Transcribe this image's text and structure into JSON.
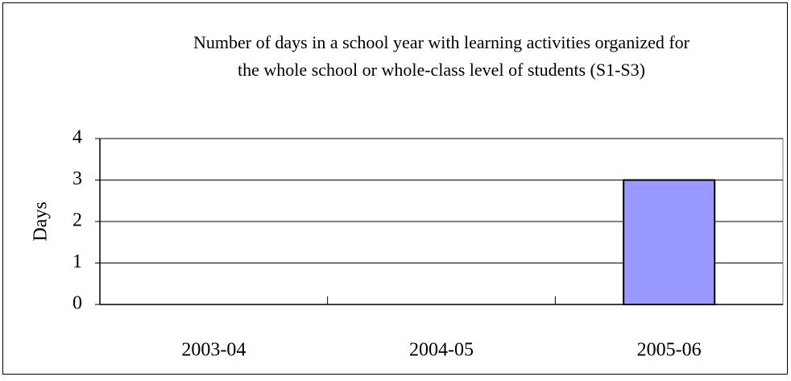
{
  "chart_data": {
    "type": "bar",
    "title": [
      "Number of days in a school year with learning activities organized for",
      "the whole school or whole-class level of students (S1-S3)"
    ],
    "y_label": "Days",
    "categories": [
      "2003-04",
      "2004-05",
      "2005-06"
    ],
    "values": [
      0,
      0,
      3
    ],
    "color": "#9999ff",
    "ylim": [
      0,
      4
    ],
    "yticks": [
      0,
      1,
      2,
      3,
      4
    ],
    "grid": true
  }
}
